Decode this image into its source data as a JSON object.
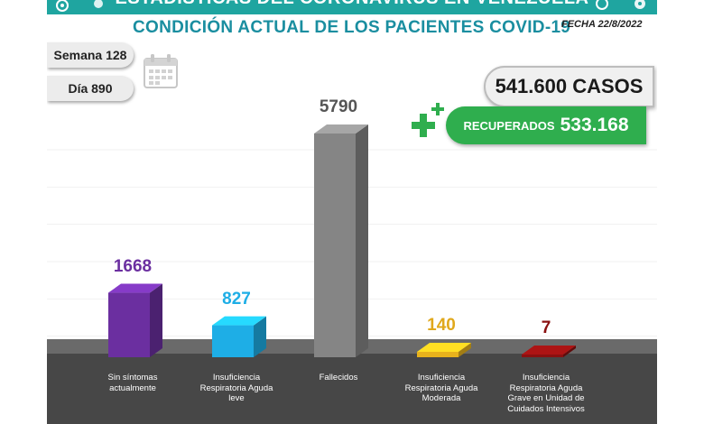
{
  "header": {
    "title": "ESTADÍSTICAS DEL CORONAVIRUS EN VENEZUELA",
    "subtitle": "CONDICIÓN ACTUAL DE LOS PACIENTES COVID-19",
    "date": "FECHA 22/8/2022"
  },
  "counters": {
    "week": "Semana 128",
    "day": "Día 890"
  },
  "totals": {
    "cases": "541.600 CASOS",
    "recovered_label": "RECUPERADOS",
    "recovered_value": "533.168"
  },
  "colors": {
    "header": "#1fa5a0",
    "subtitle": "#1a8ea0",
    "recovered": "#2fae4e",
    "floor": "#474747"
  },
  "chart_data": {
    "type": "bar",
    "title": "CONDICIÓN ACTUAL DE LOS PACIENTES COVID-19",
    "categories": [
      "Sin síntomas\nactualmente",
      "Insuficiencia\nRespiratoria Aguda\nleve",
      "Fallecidos",
      "Insuficiencia\nRespiratoria Aguda\nModerada",
      "Insuficiencia\nRespiratoria Aguda\nGrave en Unidad de\nCuidados Intensivos"
    ],
    "values": [
      1668,
      827,
      5790,
      140,
      7
    ],
    "value_labels": [
      "1668",
      "827",
      "5790",
      "140",
      "7"
    ],
    "colors": [
      "#6b2fa0",
      "#1eaee6",
      "#858585",
      "#e8b21c",
      "#8a1010"
    ],
    "label_colors": [
      "#6b2fa0",
      "#1eaee6",
      "#555555",
      "#e0a81c",
      "#8a1010"
    ],
    "ylim": [
      0,
      5790
    ],
    "grid": true,
    "xlabel": "",
    "ylabel": ""
  }
}
